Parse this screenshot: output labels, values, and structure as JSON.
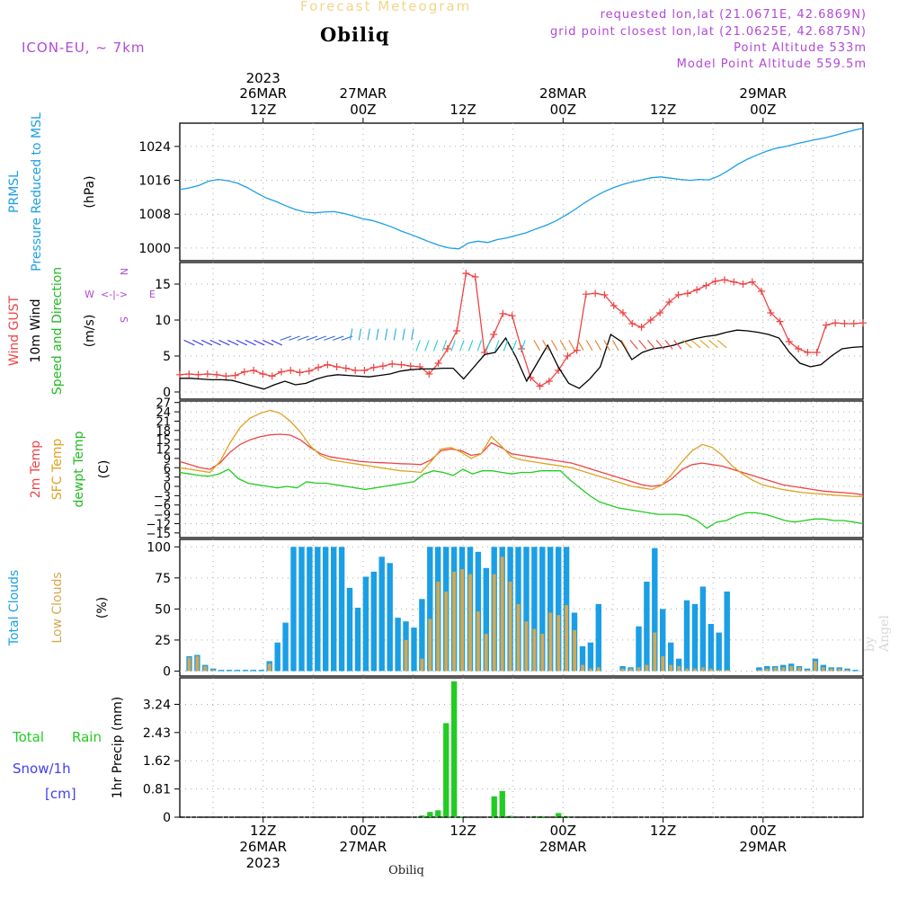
{
  "header": {
    "title": "Forecast Meteogram",
    "location": "Obiliq",
    "model": "ICON-EU, ~ 7km",
    "requested": "requested lon,lat (21.0671E, 42.6869N)",
    "grid": "grid point closest lon,lat (21.0625E, 42.6875N)",
    "point_alt": "Point Altitude 533m",
    "model_alt": "Model Point Altitude 559.5m"
  },
  "footer_label": "Obiliq",
  "watermark": "by Angel",
  "colors": {
    "pressure": "#1a9fe6",
    "gust": "#ee4444",
    "wind": "#000000",
    "temp2m": "#ee4444",
    "sfc": "#e0a020",
    "dewpt": "#22cc22",
    "total_cloud": "#1a9fe6",
    "low_cloud": "#d4a850",
    "rain": "#22cc22",
    "snow_label": "#4040ee",
    "dir_label": "#22bb22",
    "purple": "#b148d6"
  },
  "chart_data": [
    {
      "type": "line",
      "panel": "pressure",
      "label_lines": [
        {
          "text": "PRMSL",
          "color": "#1a9fe6"
        },
        {
          "text": "Pressure Reduced to MSL",
          "color": "#1a9fe6"
        },
        {
          "text": "(hPa)",
          "color": "#000000"
        }
      ],
      "yticks": [
        1000,
        1008,
        1016,
        1024
      ],
      "ylim": [
        997,
        1029.5
      ],
      "series": [
        {
          "values": [
            1013.8,
            1014.2,
            1014.8,
            1015.8,
            1016.2,
            1015.9,
            1015.3,
            1014.3,
            1013.0,
            1011.8,
            1011.0,
            1010.0,
            1009.1,
            1008.5,
            1008.3,
            1008.5,
            1008.6,
            1008.2,
            1007.6,
            1006.9,
            1006.5,
            1005.8,
            1005.0,
            1004.0,
            1003.2,
            1002.3,
            1001.4,
            1000.6,
            1000.0,
            999.8,
            1001.2,
            1001.6,
            1001.3,
            1002.0,
            1002.4,
            1003.0,
            1003.6,
            1004.5,
            1005.3,
            1006.3,
            1007.6,
            1009.0,
            1010.6,
            1012.0,
            1013.2,
            1014.2,
            1015.0,
            1015.6,
            1016.1,
            1016.6,
            1016.8,
            1016.5,
            1016.2,
            1016.0,
            1016.2,
            1016.1,
            1017.0,
            1018.3,
            1019.8,
            1021.0,
            1022.0,
            1022.9,
            1023.6,
            1024.0,
            1024.6,
            1025.1,
            1025.6,
            1026.0,
            1026.6,
            1027.2,
            1027.8,
            1028.3
          ]
        }
      ]
    },
    {
      "type": "line",
      "panel": "wind",
      "label_lines": [
        {
          "text": "Wind GUST",
          "color": "#ee4444"
        },
        {
          "text": "10m Wind",
          "color": "#000000"
        },
        {
          "text": "Speed and Direction",
          "color": "#22bb22"
        },
        {
          "text": "(m/s)",
          "color": "#000000"
        }
      ],
      "compass": {
        "n": "N",
        "s": "S",
        "w": "W",
        "e": "E"
      },
      "yticks": [
        0,
        5,
        10,
        15
      ],
      "ylim": [
        -1,
        18
      ],
      "series": [
        {
          "name": "Wind GUST",
          "values": [
            2.4,
            2.5,
            2.4,
            2.5,
            2.4,
            2.2,
            2.3,
            2.8,
            3.0,
            2.5,
            2.2,
            2.8,
            3.0,
            2.7,
            2.9,
            3.4,
            3.8,
            3.5,
            3.3,
            3.0,
            3.0,
            3.4,
            3.6,
            3.9,
            3.8,
            3.6,
            3.5,
            2.5,
            4.0,
            6.0,
            8.5,
            16.5,
            16.0,
            5.5,
            8.0,
            10.9,
            10.6,
            6.0,
            2.0,
            0.8,
            1.5,
            3.0,
            5.0,
            5.8,
            13.6,
            13.7,
            13.5,
            12.0,
            11.0,
            9.5,
            9.0,
            10.0,
            11.0,
            12.5,
            13.5,
            13.7,
            14.2,
            14.8,
            15.4,
            15.6,
            15.3,
            15.0,
            15.3,
            14.0,
            11.0,
            9.8,
            7.0,
            6.0,
            5.5,
            5.5,
            9.3,
            9.6,
            9.5,
            9.5,
            9.6
          ]
        },
        {
          "name": "10m Wind",
          "values": [
            1.9,
            1.9,
            1.8,
            1.7,
            1.7,
            1.6,
            1.2,
            0.8,
            0.4,
            1.0,
            1.5,
            1.0,
            1.2,
            1.8,
            2.2,
            2.4,
            2.3,
            2.2,
            2.1,
            2.3,
            2.5,
            2.9,
            3.1,
            3.2,
            3.2,
            3.3,
            3.3,
            1.8,
            3.5,
            5.2,
            5.5,
            7.5,
            4.8,
            1.5,
            4.0,
            6.5,
            3.5,
            1.2,
            0.5,
            1.8,
            3.5,
            8.0,
            7.0,
            4.5,
            5.5,
            6.0,
            6.2,
            6.5,
            7.0,
            7.4,
            7.7,
            7.9,
            8.3,
            8.6,
            8.5,
            8.3,
            8.0,
            7.5,
            5.5,
            4.0,
            3.5,
            3.8,
            5.0,
            6.0,
            6.2,
            6.3
          ]
        }
      ]
    },
    {
      "type": "line",
      "panel": "temperature",
      "label_lines": [
        {
          "text": "2m Temp",
          "color": "#ee4444"
        },
        {
          "text": "SFC Temp",
          "color": "#e0a020"
        },
        {
          "text": "dewpt Temp",
          "color": "#22bb22"
        },
        {
          "text": "(C)",
          "color": "#000000"
        }
      ],
      "yticks": [
        -15,
        -12,
        -9,
        -6,
        -3,
        0,
        3,
        6,
        9,
        12,
        15,
        18,
        21,
        24,
        27
      ],
      "ylim": [
        -16.5,
        27.5
      ],
      "series": [
        {
          "name": "2m Temp",
          "values": [
            8.0,
            7.0,
            6.0,
            5.5,
            7.5,
            11.0,
            13.5,
            15.0,
            16.0,
            16.6,
            16.8,
            16.5,
            15.0,
            12.5,
            10.5,
            9.5,
            9.0,
            8.5,
            8.0,
            7.8,
            7.6,
            7.5,
            7.3,
            7.2,
            7.0,
            8.5,
            11.5,
            12.0,
            11.5,
            10.0,
            10.5,
            14.0,
            12.5,
            10.5,
            10.0,
            9.5,
            9.0,
            8.5,
            8.0,
            7.5,
            6.5,
            5.5,
            4.5,
            3.5,
            2.5,
            1.5,
            0.5,
            0.0,
            0.5,
            2.5,
            5.5,
            7.0,
            7.5,
            7.0,
            6.5,
            5.5,
            4.5,
            3.5,
            2.5,
            1.5,
            0.5,
            0.0,
            -0.5,
            -1.0,
            -1.5,
            -1.8,
            -2.0,
            -2.3,
            -2.7
          ]
        },
        {
          "name": "SFC Temp",
          "values": [
            6.0,
            5.5,
            5.0,
            4.5,
            8.0,
            14.0,
            19.0,
            22.0,
            23.5,
            24.5,
            23.5,
            21.0,
            17.5,
            13.0,
            10.0,
            8.5,
            8.0,
            7.5,
            7.0,
            6.5,
            6.0,
            5.5,
            5.0,
            4.8,
            4.5,
            8.0,
            12.0,
            12.5,
            11.0,
            9.0,
            10.5,
            16.0,
            13.0,
            9.5,
            8.5,
            8.0,
            7.5,
            7.0,
            6.5,
            6.0,
            5.0,
            4.0,
            3.0,
            2.0,
            1.0,
            0.0,
            -0.5,
            -1.0,
            0.5,
            4.0,
            8.0,
            11.5,
            13.5,
            12.5,
            10.0,
            6.5,
            4.0,
            2.0,
            0.5,
            -0.3,
            -1.0,
            -1.5,
            -2.0,
            -2.3,
            -2.5,
            -2.8,
            -3.0,
            -3.2,
            -3.3
          ]
        },
        {
          "name": "dewpt Temp",
          "values": [
            4.5,
            4.0,
            3.5,
            3.3,
            4.0,
            5.5,
            2.5,
            1.0,
            0.5,
            0.0,
            -0.5,
            0.0,
            -0.5,
            1.5,
            1.0,
            1.0,
            0.5,
            0.0,
            -0.5,
            -1.0,
            -0.5,
            0.0,
            0.5,
            1.0,
            1.5,
            4.0,
            5.0,
            4.5,
            3.5,
            5.5,
            4.0,
            5.0,
            5.0,
            4.5,
            4.0,
            4.5,
            4.5,
            5.0,
            5.0,
            5.0,
            2.0,
            -0.5,
            -3.0,
            -5.0,
            -6.0,
            -7.0,
            -7.5,
            -8.0,
            -8.5,
            -9.0,
            -9.0,
            -9.0,
            -9.5,
            -11.0,
            -13.5,
            -11.5,
            -11.0,
            -9.5,
            -8.5,
            -8.5,
            -9.0,
            -10.0,
            -11.0,
            -11.5,
            -11.0,
            -10.5,
            -10.5,
            -11.0,
            -11.0,
            -11.5,
            -12.0
          ]
        }
      ]
    },
    {
      "type": "bar",
      "panel": "clouds",
      "label_lines": [
        {
          "text": "Total Clouds",
          "color": "#1a9fe6"
        },
        {
          "text": "Low Clouds",
          "color": "#d4a850"
        },
        {
          "text": "(%)",
          "color": "#000000"
        }
      ],
      "yticks": [
        0,
        25,
        50,
        75,
        100
      ],
      "ylim": [
        -4,
        106
      ],
      "series": [
        {
          "name": "Total Clouds",
          "values": [
            12,
            13,
            5,
            2,
            1,
            1,
            1,
            1,
            1,
            1,
            8,
            23,
            39,
            100,
            100,
            100,
            100,
            100,
            100,
            100,
            67,
            51,
            76,
            80,
            92,
            87,
            43,
            40,
            35,
            58,
            100,
            100,
            100,
            100,
            100,
            100,
            96,
            83,
            100,
            100,
            100,
            100,
            100,
            100,
            100,
            100,
            100,
            100,
            47,
            20,
            23,
            54,
            0,
            0,
            4,
            3,
            36,
            72,
            99,
            50,
            23,
            10,
            57,
            54,
            68,
            38,
            31,
            64,
            0,
            0,
            0,
            3,
            4,
            4,
            5,
            6,
            4,
            2,
            10,
            5,
            3,
            3,
            2,
            1
          ]
        },
        {
          "name": "Low Clouds",
          "values": [
            11,
            12,
            4,
            1,
            0,
            0,
            0,
            0,
            0,
            0,
            6,
            0,
            0,
            0,
            0,
            0,
            0,
            0,
            0,
            0,
            0,
            0,
            0,
            0,
            0,
            0,
            0,
            25,
            0,
            10,
            42,
            72,
            64,
            80,
            82,
            78,
            48,
            30,
            78,
            92,
            72,
            54,
            40,
            34,
            30,
            47,
            45,
            53,
            33,
            5,
            2,
            3,
            0,
            0,
            2,
            2,
            3,
            5,
            31,
            12,
            5,
            4,
            2,
            2,
            3,
            2,
            1,
            1,
            0,
            0,
            0,
            1,
            2,
            3,
            3,
            4,
            3,
            1,
            8,
            3,
            2,
            2,
            1,
            0
          ]
        }
      ]
    },
    {
      "type": "bar",
      "panel": "precip",
      "label_lines": [
        {
          "text": "Total",
          "color": "#22cc22"
        },
        {
          "text": "Rain",
          "color": "#22cc22"
        },
        {
          "text": "Snow/1h",
          "color": "#4040ee"
        },
        {
          "text": "[cm]",
          "color": "#4040ee"
        },
        {
          "text": "1hr Precip (mm)",
          "color": "#000000"
        }
      ],
      "yticks": [
        0,
        0.81,
        1.62,
        2.43,
        3.24
      ],
      "ylim": [
        0,
        4.0
      ],
      "series": [
        {
          "name": "Total Rain",
          "values": [
            0,
            0,
            0,
            0,
            0,
            0,
            0,
            0,
            0,
            0,
            0,
            0,
            0,
            0,
            0,
            0,
            0,
            0,
            0,
            0,
            0,
            0,
            0,
            0,
            0,
            0,
            0,
            0,
            0,
            0.05,
            0.15,
            0.2,
            2.7,
            3.9,
            0.02,
            0,
            0,
            0,
            0.6,
            0.75,
            0.04,
            0,
            0,
            0.03,
            0.03,
            0,
            0.12,
            0.03,
            0,
            0,
            0,
            0,
            0,
            0,
            0,
            0,
            0,
            0,
            0,
            0,
            0,
            0,
            0,
            0,
            0,
            0,
            0,
            0,
            0,
            0,
            0,
            0,
            0,
            0,
            0,
            0,
            0,
            0,
            0,
            0,
            0,
            0,
            0,
            0
          ]
        }
      ]
    }
  ],
  "time_axis": {
    "top": [
      {
        "l1": "2023",
        "l2": "26MAR",
        "l3": "12Z",
        "h": 12
      },
      {
        "l1": "",
        "l2": "27MAR",
        "l3": "00Z",
        "h": 24
      },
      {
        "l1": "",
        "l2": "",
        "l3": "12Z",
        "h": 36
      },
      {
        "l1": "",
        "l2": "28MAR",
        "l3": "00Z",
        "h": 48
      },
      {
        "l1": "",
        "l2": "",
        "l3": "12Z",
        "h": 60
      },
      {
        "l1": "",
        "l2": "29MAR",
        "l3": "00Z",
        "h": 72
      }
    ],
    "bottom": [
      {
        "l1": "12Z",
        "l2": "26MAR",
        "l3": "2023",
        "h": 12
      },
      {
        "l1": "00Z",
        "l2": "27MAR",
        "l3": "",
        "h": 24
      },
      {
        "l1": "12Z",
        "l2": "",
        "l3": "",
        "h": 36
      },
      {
        "l1": "00Z",
        "l2": "28MAR",
        "l3": "",
        "h": 48
      },
      {
        "l1": "12Z",
        "l2": "",
        "l3": "",
        "h": 60
      },
      {
        "l1": "00Z",
        "l2": "29MAR",
        "l3": "",
        "h": 72
      }
    ]
  }
}
